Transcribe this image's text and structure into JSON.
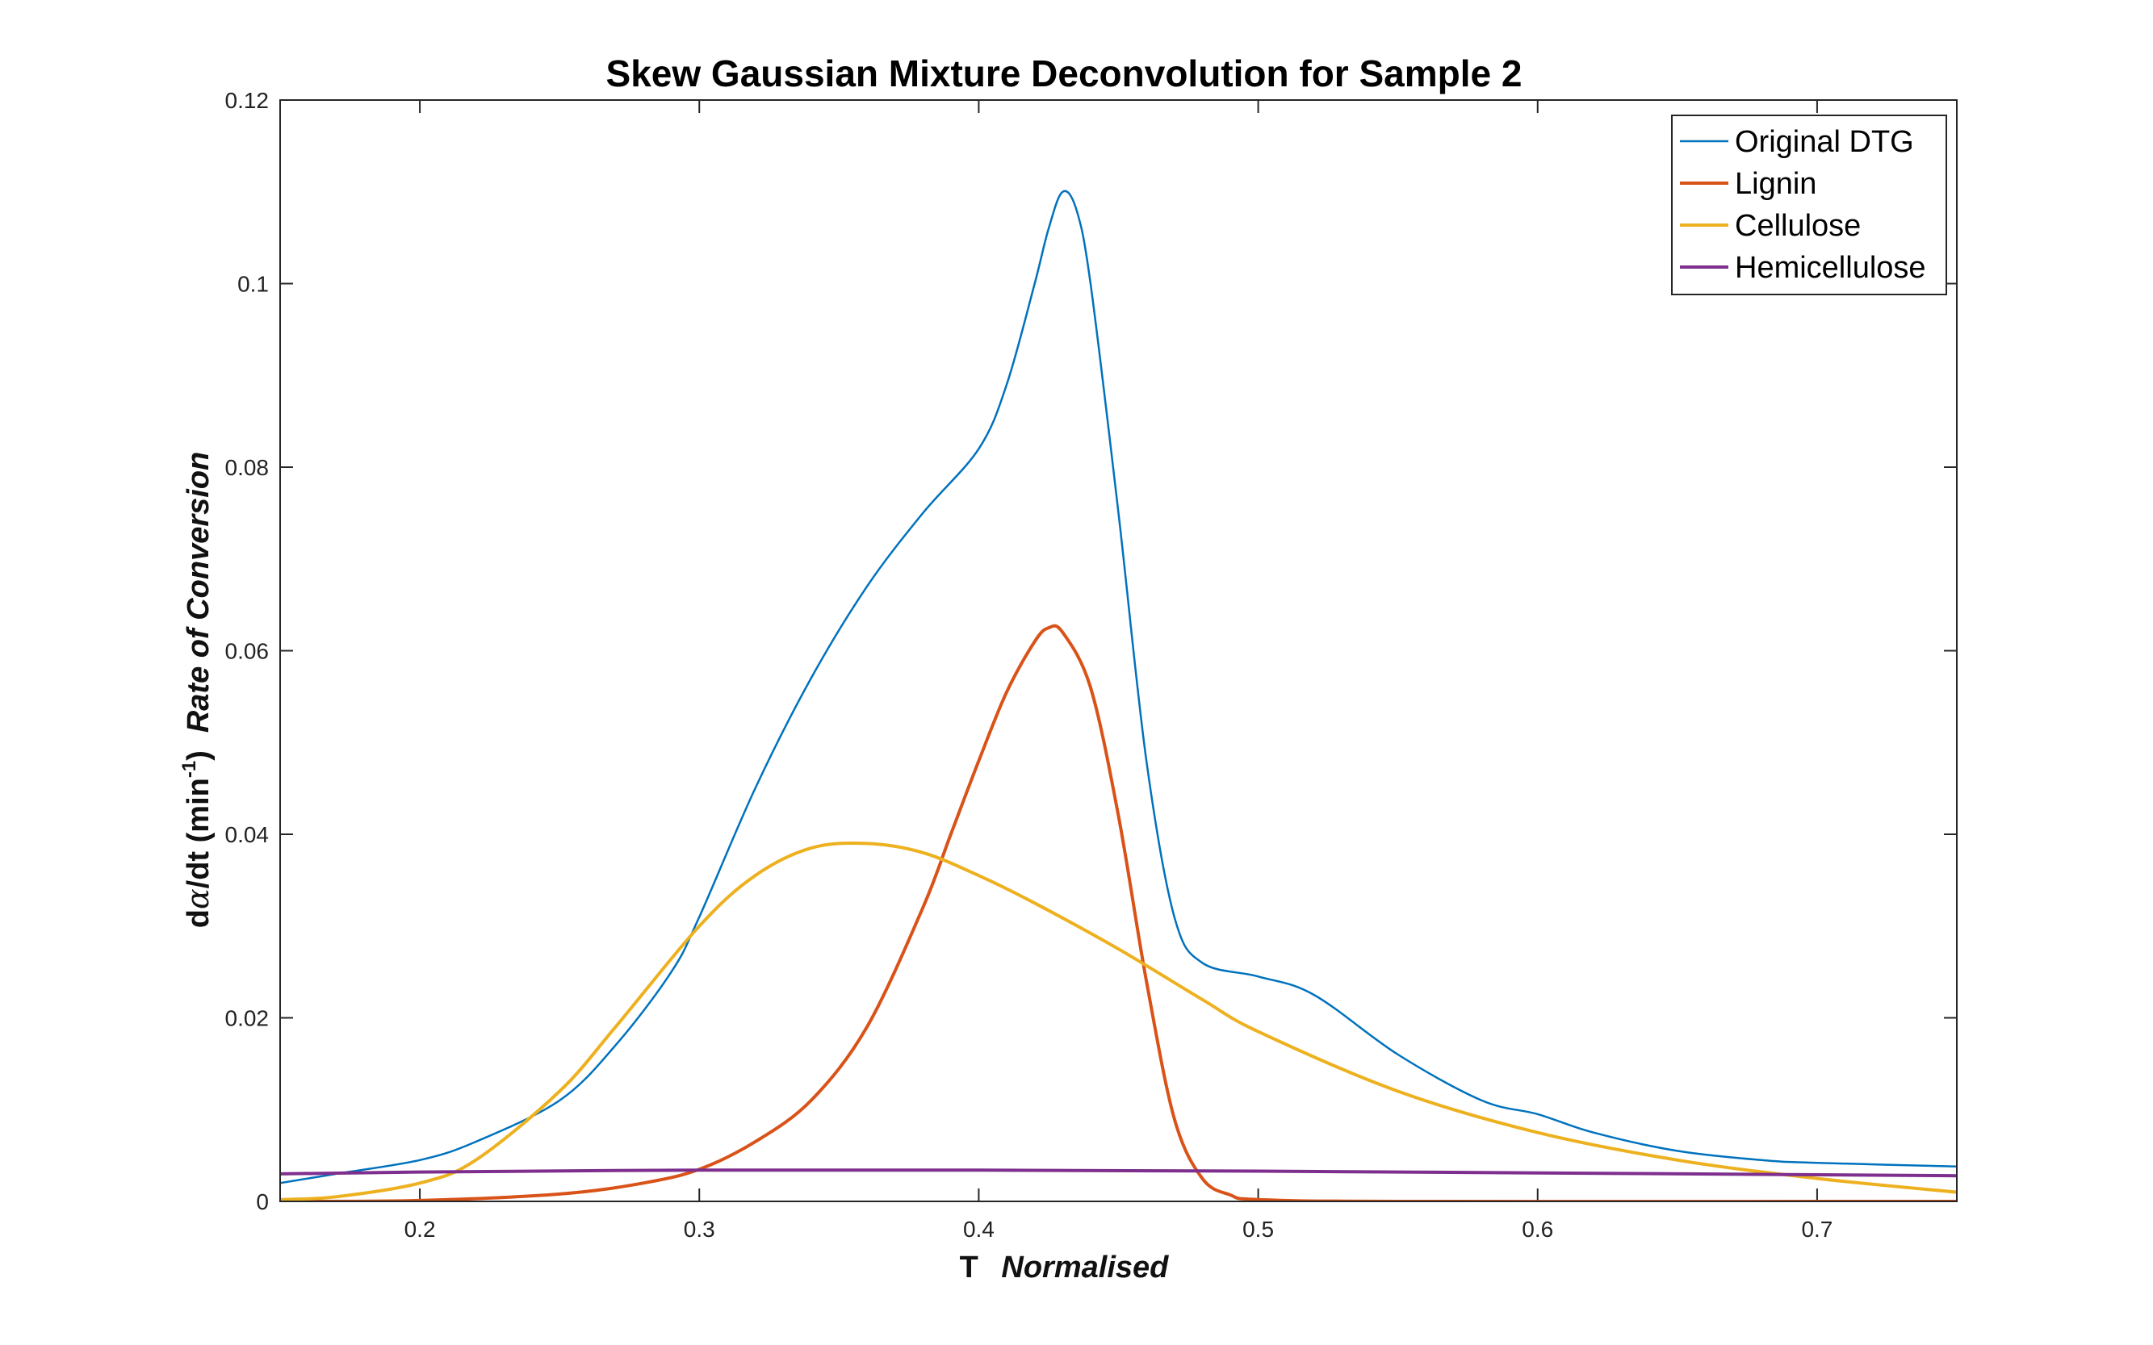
{
  "chart_data": {
    "type": "line",
    "title": "Skew Gaussian Mixture Deconvolution for Sample 2",
    "xlabel": {
      "main": "T",
      "italic": "Normalised"
    },
    "ylabel": {
      "prefix": "d",
      "alpha": "α",
      "mid": "/dt (min",
      "exp": "-1",
      "close": ")",
      "italic": "Rate of Conversion"
    },
    "xlim": [
      0.15,
      0.75
    ],
    "ylim": [
      0,
      0.12
    ],
    "xticks": [
      0.2,
      0.3,
      0.4,
      0.5,
      0.6,
      0.7
    ],
    "xtick_labels": [
      "0.2",
      "0.3",
      "0.4",
      "0.5",
      "0.6",
      "0.7"
    ],
    "yticks": [
      0,
      0.02,
      0.04,
      0.06,
      0.08,
      0.1,
      0.12
    ],
    "ytick_labels": [
      "0",
      "0.02",
      "0.04",
      "0.06",
      "0.08",
      "0.1",
      "0.12"
    ],
    "grid": false,
    "legend_position": "top-right",
    "series": [
      {
        "name": "Original DTG",
        "color": "#0072BD",
        "x": [
          0.15,
          0.17,
          0.2,
          0.22,
          0.25,
          0.27,
          0.29,
          0.3,
          0.32,
          0.34,
          0.36,
          0.38,
          0.4,
          0.41,
          0.42,
          0.425,
          0.43,
          0.435,
          0.44,
          0.45,
          0.46,
          0.47,
          0.48,
          0.5,
          0.52,
          0.55,
          0.58,
          0.6,
          0.62,
          0.65,
          0.68,
          0.7,
          0.75
        ],
        "y": [
          0.002,
          0.003,
          0.0045,
          0.0065,
          0.011,
          0.017,
          0.025,
          0.031,
          0.045,
          0.057,
          0.067,
          0.075,
          0.082,
          0.089,
          0.1,
          0.106,
          0.11,
          0.108,
          0.1,
          0.075,
          0.048,
          0.031,
          0.026,
          0.0245,
          0.0225,
          0.016,
          0.011,
          0.0095,
          0.0075,
          0.0055,
          0.0045,
          0.0042,
          0.0038
        ]
      },
      {
        "name": "Lignin",
        "color": "#D95319",
        "x": [
          0.15,
          0.2,
          0.25,
          0.28,
          0.3,
          0.32,
          0.34,
          0.36,
          0.38,
          0.39,
          0.4,
          0.41,
          0.42,
          0.425,
          0.43,
          0.44,
          0.45,
          0.46,
          0.47,
          0.48,
          0.49,
          0.5,
          0.55,
          0.75
        ],
        "y": [
          0,
          0.0001,
          0.0008,
          0.002,
          0.0035,
          0.0065,
          0.011,
          0.019,
          0.032,
          0.04,
          0.048,
          0.0555,
          0.061,
          0.0625,
          0.062,
          0.056,
          0.042,
          0.024,
          0.009,
          0.0025,
          0.0007,
          0.0002,
          0,
          0
        ]
      },
      {
        "name": "Cellulose",
        "color": "#EDB120",
        "x": [
          0.15,
          0.17,
          0.2,
          0.22,
          0.25,
          0.27,
          0.3,
          0.32,
          0.34,
          0.36,
          0.38,
          0.4,
          0.42,
          0.45,
          0.48,
          0.5,
          0.55,
          0.6,
          0.65,
          0.7,
          0.75
        ],
        "y": [
          0.0002,
          0.0005,
          0.002,
          0.0045,
          0.012,
          0.019,
          0.03,
          0.0355,
          0.0385,
          0.039,
          0.038,
          0.0355,
          0.0325,
          0.0275,
          0.022,
          0.0185,
          0.012,
          0.0075,
          0.0045,
          0.0025,
          0.001
        ]
      },
      {
        "name": "Hemicellulose",
        "color": "#7E2F8E",
        "x": [
          0.15,
          0.2,
          0.3,
          0.4,
          0.5,
          0.6,
          0.7,
          0.75
        ],
        "y": [
          0.003,
          0.0032,
          0.0034,
          0.0034,
          0.0033,
          0.0031,
          0.0029,
          0.0028
        ]
      }
    ]
  }
}
